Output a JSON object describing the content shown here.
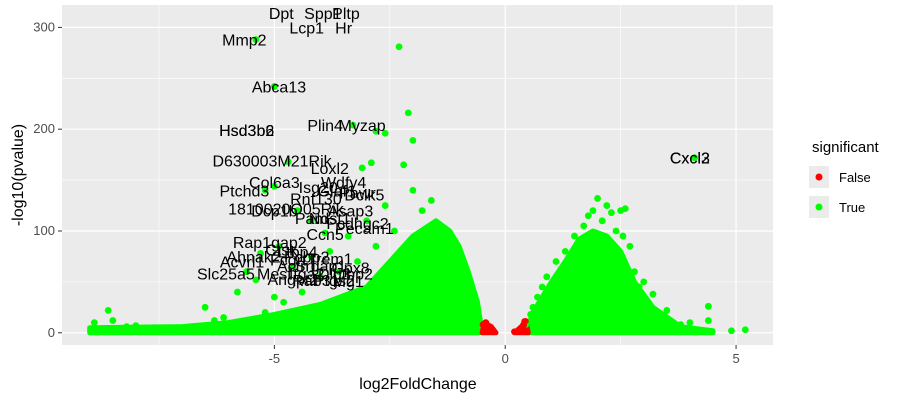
{
  "chart_data": {
    "type": "scatter",
    "title": "",
    "xlabel": "log2FoldChange",
    "ylabel": "-log10(pvalue)",
    "xlim": [
      -9.6,
      5.8
    ],
    "ylim": [
      -12,
      322
    ],
    "x_ticks": [
      -5,
      0,
      5
    ],
    "y_ticks": [
      0,
      100,
      200,
      300
    ],
    "grid": true,
    "background": "#ebebeb",
    "legend": {
      "title": "significant",
      "position": "right",
      "entries": [
        {
          "label": "False",
          "color": "#ff0000"
        },
        {
          "label": "True",
          "color": "#00ff00"
        }
      ]
    },
    "series": [
      {
        "name": "True",
        "color": "#00ff00",
        "points": [
          [
            -8.9,
            10
          ],
          [
            -8.6,
            22
          ],
          [
            -8.5,
            12
          ],
          [
            -8.2,
            6
          ],
          [
            -8.0,
            7
          ],
          [
            -7.6,
            5
          ],
          [
            -7.4,
            4
          ],
          [
            -7.1,
            5
          ],
          [
            -6.9,
            4
          ],
          [
            -6.5,
            25
          ],
          [
            -6.3,
            12
          ],
          [
            -6.1,
            15
          ],
          [
            -5.8,
            40
          ],
          [
            -5.6,
            10
          ],
          [
            -5.4,
            52
          ],
          [
            -5.2,
            20
          ],
          [
            -5.0,
            35
          ],
          [
            -4.8,
            30
          ],
          [
            -4.6,
            65
          ],
          [
            -4.4,
            40
          ],
          [
            -4.2,
            75
          ],
          [
            -4.0,
            55
          ],
          [
            -3.8,
            80
          ],
          [
            -3.6,
            60
          ],
          [
            -3.4,
            95
          ],
          [
            -3.2,
            70
          ],
          [
            -3.0,
            110
          ],
          [
            -2.8,
            85
          ],
          [
            -2.6,
            125
          ],
          [
            -2.4,
            100
          ],
          [
            -2.2,
            165
          ],
          [
            -2.0,
            140
          ],
          [
            -1.8,
            120
          ],
          [
            -1.6,
            130
          ],
          [
            -1.5,
            80
          ],
          [
            -1.4,
            100
          ],
          [
            -1.3,
            60
          ],
          [
            -1.2,
            90
          ],
          [
            -1.1,
            50
          ],
          [
            -1.0,
            70
          ],
          [
            -0.9,
            40
          ],
          [
            -0.8,
            55
          ],
          [
            -0.7,
            30
          ],
          [
            -0.6,
            20
          ],
          [
            -0.55,
            10
          ],
          [
            -5.4,
            288
          ],
          [
            -5.0,
            242
          ],
          [
            -4.7,
            168
          ],
          [
            -2.3,
            281
          ],
          [
            -2.1,
            216
          ],
          [
            -2.0,
            189
          ],
          [
            -3.3,
            204
          ],
          [
            -2.8,
            198
          ],
          [
            -2.6,
            196
          ],
          [
            -2.9,
            167
          ],
          [
            -3.1,
            162
          ],
          [
            -5.0,
            144
          ],
          [
            -5.2,
            140
          ],
          [
            -4.5,
            120
          ],
          [
            -4.2,
            110
          ],
          [
            -3.9,
            98
          ],
          [
            -4.9,
            85
          ],
          [
            -5.3,
            78
          ],
          [
            -5.6,
            60
          ],
          [
            0.45,
            8
          ],
          [
            0.55,
            18
          ],
          [
            0.6,
            25
          ],
          [
            0.7,
            35
          ],
          [
            0.8,
            45
          ],
          [
            0.9,
            55
          ],
          [
            1.0,
            48
          ],
          [
            1.1,
            70
          ],
          [
            1.2,
            62
          ],
          [
            1.3,
            80
          ],
          [
            1.4,
            75
          ],
          [
            1.5,
            95
          ],
          [
            1.6,
            88
          ],
          [
            1.7,
            105
          ],
          [
            1.8,
            115
          ],
          [
            1.9,
            120
          ],
          [
            2.0,
            132
          ],
          [
            2.1,
            110
          ],
          [
            2.2,
            125
          ],
          [
            2.3,
            118
          ],
          [
            2.4,
            100
          ],
          [
            2.5,
            120
          ],
          [
            2.6,
            122
          ],
          [
            2.7,
            85
          ],
          [
            2.8,
            60
          ],
          [
            2.9,
            45
          ],
          [
            3.0,
            50
          ],
          [
            3.2,
            38
          ],
          [
            3.5,
            22
          ],
          [
            3.8,
            8
          ],
          [
            4.0,
            10
          ],
          [
            4.1,
            172
          ],
          [
            4.4,
            26
          ],
          [
            4.4,
            12
          ],
          [
            5.2,
            3
          ],
          [
            4.9,
            2
          ],
          [
            3.1,
            28
          ],
          [
            2.55,
            95
          ]
        ]
      },
      {
        "name": "False",
        "color": "#ff0000",
        "points": [
          [
            -0.45,
            2
          ],
          [
            -0.4,
            4
          ],
          [
            -0.35,
            6
          ],
          [
            -0.3,
            3
          ],
          [
            -0.25,
            1
          ],
          [
            -0.48,
            8
          ],
          [
            -0.42,
            10
          ],
          [
            -0.38,
            1
          ],
          [
            0.25,
            1
          ],
          [
            0.3,
            3
          ],
          [
            0.35,
            5
          ],
          [
            0.4,
            8
          ],
          [
            0.45,
            2
          ],
          [
            0.42,
            11
          ],
          [
            0.38,
            6
          ],
          [
            0.2,
            1
          ]
        ]
      }
    ],
    "clouds": [
      {
        "color": "#00ff00",
        "envelope": [
          [
            -9.0,
            5
          ],
          [
            -7.0,
            6
          ],
          [
            -6.0,
            10
          ],
          [
            -5.0,
            18
          ],
          [
            -4.0,
            28
          ],
          [
            -3.0,
            45
          ],
          [
            -2.5,
            70
          ],
          [
            -2.0,
            95
          ],
          [
            -1.5,
            110
          ],
          [
            -1.2,
            100
          ],
          [
            -1.0,
            85
          ],
          [
            -0.8,
            60
          ],
          [
            -0.6,
            30
          ],
          [
            -0.5,
            0
          ]
        ]
      },
      {
        "color": "#00ff00",
        "envelope": [
          [
            0.45,
            0
          ],
          [
            0.6,
            20
          ],
          [
            0.8,
            35
          ],
          [
            1.0,
            50
          ],
          [
            1.3,
            70
          ],
          [
            1.6,
            92
          ],
          [
            1.9,
            100
          ],
          [
            2.2,
            95
          ],
          [
            2.5,
            80
          ],
          [
            2.8,
            50
          ],
          [
            3.2,
            25
          ],
          [
            3.8,
            6
          ],
          [
            4.5,
            2
          ]
        ]
      },
      {
        "color": "#ff0000",
        "envelope": [
          [
            -0.5,
            0
          ],
          [
            -0.45,
            10
          ],
          [
            -0.3,
            6
          ],
          [
            -0.2,
            0
          ]
        ]
      },
      {
        "color": "#ff0000",
        "envelope": [
          [
            0.2,
            0
          ],
          [
            0.35,
            6
          ],
          [
            0.45,
            12
          ],
          [
            0.5,
            0
          ]
        ]
      }
    ],
    "annotations": [
      {
        "text": "Dpt",
        "x": -4.85,
        "y": 314
      },
      {
        "text": "Spp1",
        "x": -3.95,
        "y": 314
      },
      {
        "text": "Pltp",
        "x": -3.45,
        "y": 314
      },
      {
        "text": "Lcp1",
        "x": -4.3,
        "y": 300
      },
      {
        "text": "Hr",
        "x": -3.5,
        "y": 300
      },
      {
        "text": "Mmp2",
        "x": -5.65,
        "y": 288
      },
      {
        "text": "Abca13",
        "x": -4.9,
        "y": 242
      },
      {
        "text": "Plin4",
        "x": -3.9,
        "y": 204
      },
      {
        "text": "Myzap",
        "x": -3.1,
        "y": 204
      },
      {
        "text": "Hsd3b6",
        "x": -5.6,
        "y": 199
      },
      {
        "text": "Hsd3b2",
        "x": -5.6,
        "y": 199
      },
      {
        "text": "D630003M21Rik",
        "x": -5.05,
        "y": 169
      },
      {
        "text": "Loxl2",
        "x": -3.8,
        "y": 162
      },
      {
        "text": "Cxcl2",
        "x": 4.0,
        "y": 172
      },
      {
        "text": "Cxcl3",
        "x": 4.0,
        "y": 172
      },
      {
        "text": "Col6a3",
        "x": -5.0,
        "y": 148
      },
      {
        "text": "Wdfy4",
        "x": -3.5,
        "y": 148
      },
      {
        "text": "Isg20",
        "x": -4.05,
        "y": 143
      },
      {
        "text": "Glaf1",
        "x": -3.65,
        "y": 140
      },
      {
        "text": "Pawr",
        "x": -3.2,
        "y": 138
      },
      {
        "text": "Dclk5",
        "x": -3.05,
        "y": 136
      },
      {
        "text": "Ptchd3",
        "x": -5.65,
        "y": 140
      },
      {
        "text": "Rnf130",
        "x": -4.1,
        "y": 132
      },
      {
        "text": "1810020O05Rik",
        "x": -4.75,
        "y": 122
      },
      {
        "text": "Dcp1b",
        "x": -5.0,
        "y": 120
      },
      {
        "text": "Asap3",
        "x": -3.35,
        "y": 120
      },
      {
        "text": "Pam",
        "x": -4.2,
        "y": 113
      },
      {
        "text": "Ndst1",
        "x": -3.8,
        "y": 113
      },
      {
        "text": "Pcdhgc2",
        "x": -3.2,
        "y": 108
      },
      {
        "text": "Pecam1",
        "x": -3.05,
        "y": 103
      },
      {
        "text": "Ccn5",
        "x": -3.9,
        "y": 97
      },
      {
        "text": "Rap1gap2",
        "x": -5.1,
        "y": 89
      },
      {
        "text": "Ltbp4",
        "x": -4.5,
        "y": 80
      },
      {
        "text": "Ctsk",
        "x": -4.85,
        "y": 82
      },
      {
        "text": "Ahnak2",
        "x": -5.45,
        "y": 75
      },
      {
        "text": "Fcgrt",
        "x": -4.7,
        "y": 72
      },
      {
        "text": "Pcbp2",
        "x": -4.3,
        "y": 75
      },
      {
        "text": "Trem1",
        "x": -3.8,
        "y": 73
      },
      {
        "text": "Acvrl1",
        "x": -5.7,
        "y": 70
      },
      {
        "text": "Actn1",
        "x": -4.5,
        "y": 66
      },
      {
        "text": "Srgap1",
        "x": -4.0,
        "y": 66
      },
      {
        "text": "Gpx8",
        "x": -3.35,
        "y": 64
      },
      {
        "text": "Slc25a5",
        "x": -6.05,
        "y": 58
      },
      {
        "text": "Mest",
        "x": -5.0,
        "y": 58
      },
      {
        "text": "Itga2",
        "x": -4.3,
        "y": 58
      },
      {
        "text": "Dlg3",
        "x": -3.7,
        "y": 58
      },
      {
        "text": "Ltbp2",
        "x": -3.3,
        "y": 58
      },
      {
        "text": "Angpt2",
        "x": -4.6,
        "y": 53
      },
      {
        "text": "Rab31",
        "x": -4.1,
        "y": 52
      },
      {
        "text": "Ptgs2",
        "x": -3.7,
        "y": 52
      },
      {
        "text": "Mg1",
        "x": -3.4,
        "y": 51
      }
    ]
  }
}
